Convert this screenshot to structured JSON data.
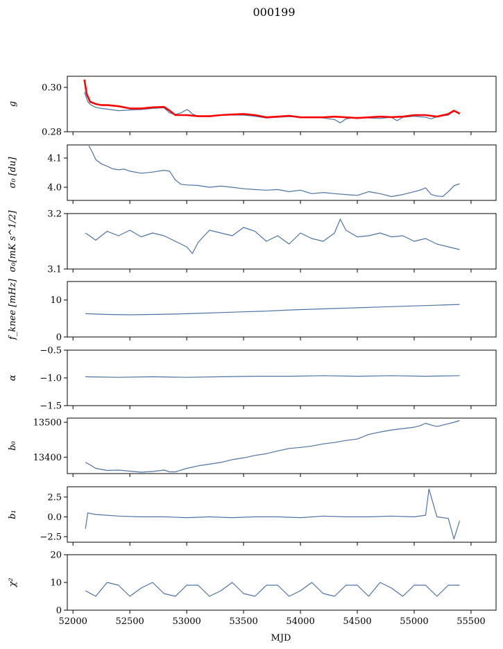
{
  "figure": {
    "title": "000199",
    "xlabel": "MJD"
  },
  "colors": {
    "series_blue": "#4c72a4",
    "fit_red": "#ff0000",
    "frame": "#000000"
  },
  "chart_data": [
    {
      "type": "line",
      "ylabel": "g",
      "ylim": [
        0.28,
        0.305
      ],
      "yticks": [
        0.28,
        0.3
      ],
      "ytick_labels": [
        "0.28",
        "0.30"
      ],
      "xlim": [
        51950,
        55720
      ],
      "series": [
        {
          "role": "measured",
          "color": "#4c72a4",
          "x": [
            52100,
            52130,
            52160,
            52200,
            52250,
            52300,
            52400,
            52500,
            52600,
            52700,
            52800,
            52850,
            52900,
            52950,
            53000,
            53020,
            53050,
            53100,
            53200,
            53300,
            53400,
            53500,
            53600,
            53700,
            53800,
            53900,
            54000,
            54100,
            54200,
            54300,
            54350,
            54400,
            54500,
            54600,
            54700,
            54800,
            54850,
            54900,
            55000,
            55100,
            55150,
            55200,
            55300,
            55350,
            55400
          ],
          "y": [
            0.298,
            0.2935,
            0.292,
            0.291,
            0.2905,
            0.2902,
            0.2895,
            0.2898,
            0.29,
            0.2905,
            0.2908,
            0.2885,
            0.2878,
            0.2885,
            0.29,
            0.2895,
            0.288,
            0.287,
            0.2868,
            0.2875,
            0.2875,
            0.2875,
            0.287,
            0.2862,
            0.2865,
            0.2868,
            0.2865,
            0.2865,
            0.2862,
            0.2855,
            0.284,
            0.2858,
            0.2865,
            0.2862,
            0.286,
            0.2865,
            0.285,
            0.2865,
            0.287,
            0.2865,
            0.2858,
            0.2868,
            0.2875,
            0.2895,
            0.2878
          ]
        },
        {
          "role": "fit",
          "color": "#ff0000",
          "x": [
            52100,
            52120,
            52150,
            52200,
            52250,
            52300,
            52400,
            52500,
            52600,
            52700,
            52800,
            52850,
            52900,
            53000,
            53100,
            53200,
            53300,
            53400,
            53500,
            53600,
            53700,
            53800,
            53900,
            54000,
            54100,
            54200,
            54300,
            54400,
            54500,
            54600,
            54700,
            54800,
            54900,
            55000,
            55100,
            55200,
            55300,
            55350,
            55400
          ],
          "y": [
            0.3035,
            0.297,
            0.2935,
            0.2925,
            0.292,
            0.292,
            0.2915,
            0.2905,
            0.2905,
            0.291,
            0.2912,
            0.2895,
            0.2875,
            0.2875,
            0.287,
            0.287,
            0.2875,
            0.2878,
            0.288,
            0.2875,
            0.2865,
            0.2868,
            0.2872,
            0.2865,
            0.2865,
            0.2865,
            0.2868,
            0.2865,
            0.2862,
            0.2865,
            0.2868,
            0.2866,
            0.2868,
            0.2875,
            0.2875,
            0.2868,
            0.288,
            0.2895,
            0.2882
          ]
        }
      ]
    },
    {
      "type": "line",
      "ylabel": "σ₀ [du]",
      "ylim": [
        3.955,
        4.145
      ],
      "yticks": [
        4.0,
        4.1
      ],
      "ytick_labels": [
        "4.0",
        "4.1"
      ],
      "xlim": [
        51950,
        55720
      ],
      "series": [
        {
          "color": "#4c72a4",
          "x": [
            52140,
            52170,
            52200,
            52250,
            52300,
            52350,
            52400,
            52450,
            52500,
            52600,
            52700,
            52800,
            52850,
            52900,
            52950,
            53000,
            53100,
            53200,
            53300,
            53400,
            53500,
            53600,
            53700,
            53800,
            53900,
            54000,
            54100,
            54200,
            54300,
            54400,
            54500,
            54600,
            54700,
            54800,
            54900,
            55000,
            55050,
            55100,
            55150,
            55200,
            55250,
            55300,
            55350,
            55400
          ],
          "y": [
            4.142,
            4.12,
            4.095,
            4.08,
            4.072,
            4.063,
            4.06,
            4.062,
            4.055,
            4.048,
            4.052,
            4.058,
            4.055,
            4.025,
            4.01,
            4.008,
            4.006,
            4.0,
            4.004,
            4.0,
            3.995,
            3.992,
            3.99,
            3.992,
            3.985,
            3.99,
            3.978,
            3.982,
            3.978,
            3.975,
            3.972,
            3.985,
            3.978,
            3.968,
            3.975,
            3.985,
            3.99,
            3.998,
            3.975,
            3.97,
            3.968,
            3.985,
            4.005,
            4.012
          ]
        }
      ]
    },
    {
      "type": "line",
      "ylabel": "σ₀[mK s^1/2]",
      "ylim": [
        3.1,
        3.2
      ],
      "yticks": [
        3.1,
        3.2
      ],
      "ytick_labels": [
        "3.1",
        "3.2"
      ],
      "xlim": [
        51950,
        55720
      ],
      "series": [
        {
          "color": "#4c72a4",
          "x": [
            52110,
            52200,
            52300,
            52400,
            52500,
            52600,
            52700,
            52800,
            52900,
            53000,
            53050,
            53100,
            53200,
            53300,
            53400,
            53500,
            53600,
            53700,
            53800,
            53900,
            54000,
            54100,
            54200,
            54300,
            54350,
            54400,
            54500,
            54600,
            54700,
            54800,
            54900,
            55000,
            55100,
            55200,
            55300,
            55400
          ],
          "y": [
            3.165,
            3.152,
            3.168,
            3.16,
            3.17,
            3.158,
            3.165,
            3.16,
            3.15,
            3.14,
            3.128,
            3.148,
            3.17,
            3.165,
            3.16,
            3.175,
            3.168,
            3.15,
            3.16,
            3.145,
            3.165,
            3.155,
            3.15,
            3.165,
            3.19,
            3.17,
            3.158,
            3.16,
            3.165,
            3.158,
            3.16,
            3.15,
            3.155,
            3.145,
            3.14,
            3.135
          ]
        }
      ]
    },
    {
      "type": "line",
      "ylabel": "f_knee [mHz]",
      "ylim": [
        0,
        15
      ],
      "yticks": [
        0,
        10
      ],
      "ytick_labels": [
        "0",
        "10"
      ],
      "xlim": [
        51950,
        55720
      ],
      "series": [
        {
          "color": "#4c72a4",
          "x": [
            52110,
            52300,
            52500,
            52700,
            52900,
            53100,
            53300,
            53500,
            53700,
            53900,
            54100,
            54300,
            54500,
            54700,
            54900,
            55100,
            55300,
            55400
          ],
          "y": [
            6.3,
            6.1,
            6.0,
            6.1,
            6.2,
            6.4,
            6.6,
            6.8,
            7.0,
            7.3,
            7.5,
            7.7,
            7.9,
            8.1,
            8.3,
            8.5,
            8.7,
            8.8
          ]
        }
      ]
    },
    {
      "type": "line",
      "ylabel": "α",
      "ylim": [
        -1.5,
        -0.5
      ],
      "yticks": [
        -1.5,
        -1.0,
        -0.5
      ],
      "ytick_labels": [
        "−1.5",
        "−1.0",
        "−0.5"
      ],
      "xlim": [
        51950,
        55720
      ],
      "series": [
        {
          "color": "#4c72a4",
          "x": [
            52110,
            52400,
            52700,
            53000,
            53300,
            53600,
            53900,
            54200,
            54500,
            54800,
            55100,
            55400
          ],
          "y": [
            -0.98,
            -0.99,
            -0.98,
            -0.99,
            -0.98,
            -0.97,
            -0.97,
            -0.96,
            -0.97,
            -0.96,
            -0.97,
            -0.96
          ]
        }
      ]
    },
    {
      "type": "line",
      "ylabel": "b₀",
      "ylim": [
        13353,
        13512
      ],
      "yticks": [
        13400,
        13500
      ],
      "ytick_labels": [
        "13400",
        "13500"
      ],
      "xlim": [
        51950,
        55720
      ],
      "series": [
        {
          "color": "#4c72a4",
          "x": [
            52110,
            52150,
            52200,
            52300,
            52400,
            52500,
            52600,
            52700,
            52800,
            52850,
            52900,
            53000,
            53100,
            53200,
            53300,
            53400,
            53500,
            53600,
            53700,
            53800,
            53900,
            54000,
            54100,
            54200,
            54300,
            54400,
            54500,
            54600,
            54700,
            54800,
            54900,
            55000,
            55050,
            55100,
            55150,
            55200,
            55250,
            55300,
            55350,
            55400
          ],
          "y": [
            13385,
            13378,
            13368,
            13362,
            13363,
            13360,
            13357,
            13359,
            13363,
            13358,
            13358,
            13368,
            13375,
            13380,
            13385,
            13393,
            13398,
            13405,
            13410,
            13418,
            13425,
            13428,
            13432,
            13438,
            13442,
            13448,
            13452,
            13465,
            13472,
            13478,
            13482,
            13486,
            13490,
            13497,
            13492,
            13488,
            13492,
            13496,
            13500,
            13505
          ]
        }
      ]
    },
    {
      "type": "line",
      "ylabel": "b₁",
      "ylim": [
        -3.2,
        3.8
      ],
      "yticks": [
        -2.5,
        0.0,
        2.5
      ],
      "ytick_labels": [
        "−2.5",
        "0.0",
        "2.5"
      ],
      "xlim": [
        51950,
        55720
      ],
      "series": [
        {
          "color": "#4c72a4",
          "x": [
            52110,
            52130,
            52200,
            52400,
            52600,
            52800,
            53000,
            53200,
            53400,
            53600,
            53800,
            54000,
            54200,
            54400,
            54600,
            54800,
            55000,
            55100,
            55130,
            55200,
            55300,
            55350,
            55400
          ],
          "y": [
            -1.5,
            0.5,
            0.3,
            0.1,
            0.0,
            0.0,
            -0.1,
            0.0,
            -0.1,
            0.0,
            0.0,
            -0.1,
            0.1,
            0.0,
            0.0,
            0.1,
            0.0,
            0.2,
            3.5,
            0.0,
            -0.2,
            -2.8,
            -0.5
          ]
        }
      ]
    },
    {
      "type": "line",
      "ylabel": "χ²",
      "ylim": [
        0,
        20
      ],
      "yticks": [
        0,
        10,
        20
      ],
      "ytick_labels": [
        "0",
        "10",
        "20"
      ],
      "xlim": [
        51950,
        55720
      ],
      "xticks": [
        52000,
        52500,
        53000,
        53500,
        54000,
        54500,
        55000,
        55500
      ],
      "xtick_labels": [
        "52000",
        "52500",
        "53000",
        "53500",
        "54000",
        "54500",
        "55000",
        "55500"
      ],
      "series": [
        {
          "color": "#4c72a4",
          "x": [
            52110,
            52200,
            52300,
            52400,
            52500,
            52600,
            52700,
            52800,
            52900,
            53000,
            53100,
            53200,
            53300,
            53400,
            53500,
            53600,
            53700,
            53800,
            53900,
            54000,
            54100,
            54200,
            54300,
            54400,
            54500,
            54600,
            54700,
            54800,
            54900,
            55000,
            55100,
            55200,
            55300,
            55400
          ],
          "y": [
            7,
            5,
            10,
            9,
            5,
            8,
            10,
            6,
            5,
            9,
            9,
            5,
            7,
            10,
            6,
            5,
            9,
            9,
            5,
            7,
            10,
            6,
            5,
            9,
            9,
            5,
            10,
            8,
            5,
            9,
            9,
            5,
            9,
            9
          ]
        }
      ]
    }
  ]
}
